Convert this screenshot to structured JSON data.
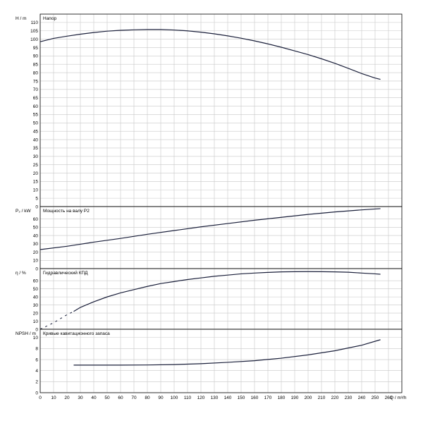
{
  "chart_data": {
    "type": "line",
    "x_axis": {
      "label": "Q / m³/h",
      "range": [
        0,
        270
      ],
      "ticks": [
        0,
        10,
        20,
        30,
        40,
        50,
        60,
        70,
        80,
        90,
        100,
        110,
        120,
        130,
        140,
        150,
        160,
        170,
        180,
        190,
        200,
        210,
        220,
        230,
        240,
        250,
        260
      ]
    },
    "grid": true,
    "panels": [
      {
        "id": "head",
        "ylabel": "H / m",
        "title": "Напор",
        "ylim": [
          0,
          115
        ],
        "yticks": [
          0,
          5,
          10,
          15,
          20,
          25,
          30,
          35,
          40,
          45,
          50,
          55,
          60,
          65,
          70,
          75,
          80,
          85,
          90,
          95,
          100,
          105,
          110
        ],
        "series": [
          {
            "x": [
              0,
              10,
              20,
              30,
              40,
              50,
              60,
              70,
              80,
              90,
              100,
              110,
              120,
              130,
              140,
              150,
              160,
              170,
              180,
              190,
              200,
              210,
              220,
              230,
              240,
              250,
              254
            ],
            "y": [
              98.5,
              100.5,
              101.8,
              103,
              104,
              104.8,
              105.3,
              105.6,
              105.8,
              105.8,
              105.5,
              105,
              104.2,
              103.2,
              102,
              100.6,
              99,
              97.2,
              95.2,
              93,
              90.8,
              88.3,
              85.6,
              82.6,
              79.5,
              76.8,
              76
            ]
          }
        ]
      },
      {
        "id": "power",
        "ylabel": "P₂ / kW",
        "title": "Мощность на валу P2",
        "ylim": [
          0,
          75
        ],
        "yticks": [
          0,
          10,
          20,
          30,
          40,
          50,
          60
        ],
        "series": [
          {
            "x": [
              0,
              20,
              40,
              60,
              80,
              100,
              120,
              140,
              160,
              180,
              200,
              220,
              240,
              254
            ],
            "y": [
              23,
              27,
              32,
              36.5,
              41.5,
              46,
              50.5,
              54.5,
              58.5,
              62,
              65.5,
              68.5,
              71,
              72.5
            ]
          }
        ]
      },
      {
        "id": "efficiency",
        "ylabel": "η / %",
        "title": "Гидравлический КПД",
        "ylim": [
          0,
          75
        ],
        "yticks": [
          0,
          10,
          20,
          30,
          40,
          50,
          60
        ],
        "series": [
          {
            "style": "dashed",
            "x": [
              0,
              5,
              10,
              15,
              20,
              25
            ],
            "y": [
              0,
              4,
              8,
              13,
              18,
              22
            ]
          },
          {
            "x": [
              25,
              30,
              40,
              50,
              60,
              70,
              80,
              90,
              100,
              110,
              120,
              130,
              140,
              150,
              160,
              170,
              180,
              190,
              200,
              210,
              220,
              230,
              240,
              250,
              254
            ],
            "y": [
              22,
              27,
              34,
              40,
              45,
              49,
              53,
              56.5,
              59,
              61.5,
              63.5,
              65.5,
              67,
              68.5,
              69.5,
              70.3,
              71,
              71.2,
              71.3,
              71.2,
              71,
              70.5,
              69.5,
              68.5,
              68
            ]
          }
        ]
      },
      {
        "id": "npsh",
        "ylabel": "NPSH / m",
        "title": "Кривые кавитационного запаса",
        "ylim": [
          0,
          11.5
        ],
        "yticks": [
          0,
          2,
          4,
          6,
          8,
          10
        ],
        "series": [
          {
            "x": [
              25,
              40,
              60,
              80,
              100,
              120,
              140,
              160,
              180,
              200,
              220,
              240,
              254
            ],
            "y": [
              5.0,
              5.0,
              5.0,
              5.02,
              5.1,
              5.25,
              5.5,
              5.8,
              6.25,
              6.85,
              7.6,
              8.6,
              9.6
            ]
          }
        ]
      }
    ]
  }
}
